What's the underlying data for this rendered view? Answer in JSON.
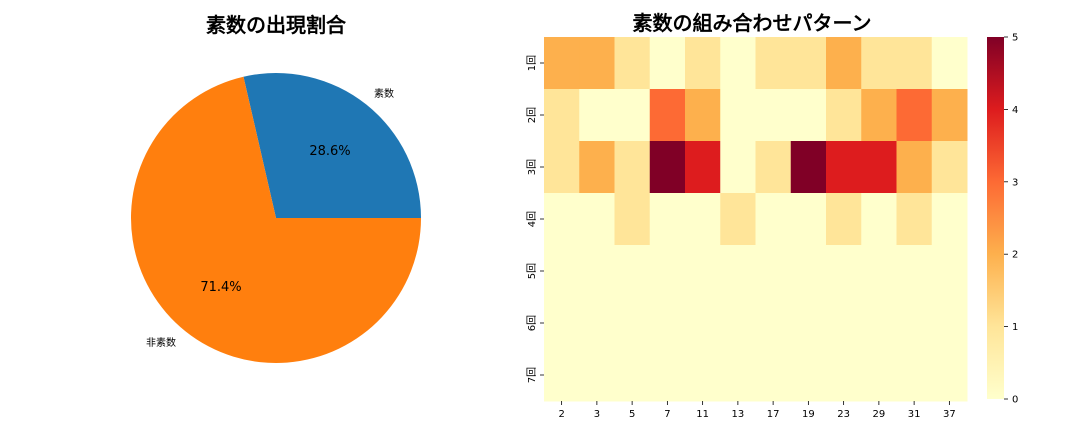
{
  "chart_data": [
    {
      "type": "pie",
      "title": "素数の出現割合",
      "labels": [
        "素数",
        "非素数"
      ],
      "values": [
        28.6,
        71.4
      ],
      "value_labels": [
        "28.6%",
        "71.4%"
      ],
      "colors": [
        "#1f77b4",
        "#ff7f0e"
      ]
    },
    {
      "type": "heatmap",
      "title": "素数の組み合わせパターン",
      "x_categories": [
        "2",
        "3",
        "5",
        "7",
        "11",
        "13",
        "17",
        "19",
        "23",
        "29",
        "31",
        "37"
      ],
      "y_categories": [
        "1回",
        "2回",
        "3回",
        "4回",
        "5回",
        "6回",
        "7回"
      ],
      "values": [
        [
          2,
          2,
          1,
          0,
          1,
          0,
          1,
          1,
          2,
          1,
          1,
          0
        ],
        [
          1,
          0,
          0,
          3,
          2,
          0,
          0,
          0,
          1,
          2,
          3,
          2
        ],
        [
          1,
          2,
          1,
          5,
          4,
          0,
          1,
          5,
          4,
          4,
          2,
          1
        ],
        [
          0,
          0,
          1,
          0,
          0,
          1,
          0,
          0,
          1,
          0,
          1,
          0
        ],
        [
          0,
          0,
          0,
          0,
          0,
          0,
          0,
          0,
          0,
          0,
          0,
          0
        ],
        [
          0,
          0,
          0,
          0,
          0,
          0,
          0,
          0,
          0,
          0,
          0,
          0
        ],
        [
          0,
          0,
          0,
          0,
          0,
          0,
          0,
          0,
          0,
          0,
          0,
          0
        ]
      ],
      "colorbar": {
        "min": 0,
        "max": 5,
        "ticks": [
          "0",
          "1",
          "2",
          "3",
          "4",
          "5"
        ],
        "colormap": "YlOrRd"
      }
    }
  ]
}
